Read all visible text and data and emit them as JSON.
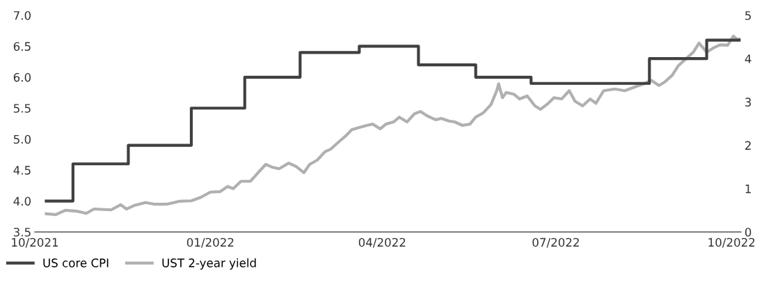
{
  "chart_data": {
    "type": "step",
    "legend": "bottom left",
    "grid": false,
    "xlim": [
      "2021-10-01",
      "2022-10-06"
    ],
    "xticks": [
      {
        "value": "2021-10-01",
        "label": "10/2021"
      },
      {
        "value": "2022-01-01",
        "label": "01/2022"
      },
      {
        "value": "2022-04-01",
        "label": "04/2022"
      },
      {
        "value": "2022-07-01",
        "label": "07/2022"
      },
      {
        "value": "2022-10-01",
        "label": "10/2022"
      }
    ],
    "ylim": [
      3.5,
      7.0
    ],
    "yticks": [
      {
        "value": 3.5,
        "label": "3.5"
      },
      {
        "value": 4.0,
        "label": "4.0"
      },
      {
        "value": 4.5,
        "label": "4.5"
      },
      {
        "value": 5.0,
        "label": "5.0"
      },
      {
        "value": 5.5,
        "label": "5.5"
      },
      {
        "value": 6.0,
        "label": "6.0"
      },
      {
        "value": 6.5,
        "label": "6.5"
      },
      {
        "value": 7.0,
        "label": "7.0"
      }
    ],
    "y2lim": [
      0,
      5
    ],
    "y2ticks": [
      0,
      1,
      2,
      3,
      4,
      5
    ],
    "series": [
      {
        "name": "US core CPI",
        "color": "#404040",
        "x": [
          "2021-10-07",
          "2021-10-21",
          "2021-11-19",
          "2021-12-22",
          "2022-01-19",
          "2022-02-17",
          "2022-03-20",
          "2022-04-20",
          "2022-05-20",
          "2022-06-18",
          "2022-08-19",
          "2022-09-18",
          "2022-10-05"
        ],
        "values": [
          4.0,
          4.6,
          4.9,
          5.5,
          6.0,
          6.4,
          6.5,
          6.2,
          6.0,
          5.9,
          6.3,
          6.6,
          6.6
        ]
      },
      {
        "name": "UST 2-year yield",
        "type": "line",
        "axis": "y2",
        "color": "#b0b0b0",
        "x": [
          "2021-10-07",
          "2021-10-12",
          "2021-10-17",
          "2021-10-23",
          "2021-10-28",
          "2021-11-01",
          "2021-11-10",
          "2021-11-15",
          "2021-11-18",
          "2021-11-22",
          "2021-11-28",
          "2021-12-03",
          "2021-12-09",
          "2021-12-16",
          "2021-12-22",
          "2021-12-27",
          "2022-01-01",
          "2022-01-06",
          "2022-01-10",
          "2022-01-13",
          "2022-01-17",
          "2022-01-22",
          "2022-01-26",
          "2022-01-30",
          "2022-02-02",
          "2022-02-06",
          "2022-02-11",
          "2022-02-15",
          "2022-02-19",
          "2022-02-22",
          "2022-02-26",
          "2022-03-02",
          "2022-03-05",
          "2022-03-09",
          "2022-03-13",
          "2022-03-16",
          "2022-03-20",
          "2022-03-24",
          "2022-03-27",
          "2022-03-31",
          "2022-04-03",
          "2022-04-07",
          "2022-04-10",
          "2022-04-14",
          "2022-04-18",
          "2022-04-21",
          "2022-04-25",
          "2022-04-29",
          "2022-05-02",
          "2022-05-06",
          "2022-05-09",
          "2022-05-13",
          "2022-05-17",
          "2022-05-20",
          "2022-05-24",
          "2022-05-28",
          "2022-05-31",
          "2022-06-01",
          "2022-06-03",
          "2022-06-05",
          "2022-06-09",
          "2022-06-12",
          "2022-06-16",
          "2022-06-20",
          "2022-06-23",
          "2022-06-27",
          "2022-06-30",
          "2022-07-04",
          "2022-07-08",
          "2022-07-11",
          "2022-07-15",
          "2022-07-19",
          "2022-07-22",
          "2022-07-26",
          "2022-08-01",
          "2022-08-06",
          "2022-08-11",
          "2022-08-16",
          "2022-08-20",
          "2022-08-24",
          "2022-08-27",
          "2022-08-31",
          "2022-09-03",
          "2022-09-07",
          "2022-09-11",
          "2022-09-14",
          "2022-09-18",
          "2022-09-22",
          "2022-09-25",
          "2022-09-29",
          "2022-10-02",
          "2022-10-04",
          "2022-10-05"
        ],
        "values": [
          0.42,
          0.4,
          0.5,
          0.48,
          0.43,
          0.53,
          0.51,
          0.63,
          0.53,
          0.61,
          0.68,
          0.64,
          0.64,
          0.71,
          0.72,
          0.8,
          0.92,
          0.93,
          1.05,
          1.0,
          1.17,
          1.17,
          1.37,
          1.56,
          1.5,
          1.46,
          1.59,
          1.51,
          1.37,
          1.56,
          1.66,
          1.85,
          1.91,
          2.07,
          2.22,
          2.36,
          2.41,
          2.46,
          2.49,
          2.38,
          2.49,
          2.54,
          2.65,
          2.54,
          2.73,
          2.78,
          2.67,
          2.59,
          2.62,
          2.56,
          2.54,
          2.46,
          2.49,
          2.65,
          2.75,
          2.94,
          3.26,
          3.42,
          3.1,
          3.22,
          3.18,
          3.07,
          3.14,
          2.91,
          2.83,
          2.97,
          3.1,
          3.07,
          3.26,
          3.02,
          2.91,
          3.07,
          2.97,
          3.26,
          3.3,
          3.26,
          3.34,
          3.42,
          3.5,
          3.38,
          3.46,
          3.62,
          3.83,
          3.99,
          4.15,
          4.36,
          4.15,
          4.26,
          4.32,
          4.31,
          4.52,
          4.44,
          4.45
        ]
      }
    ]
  }
}
